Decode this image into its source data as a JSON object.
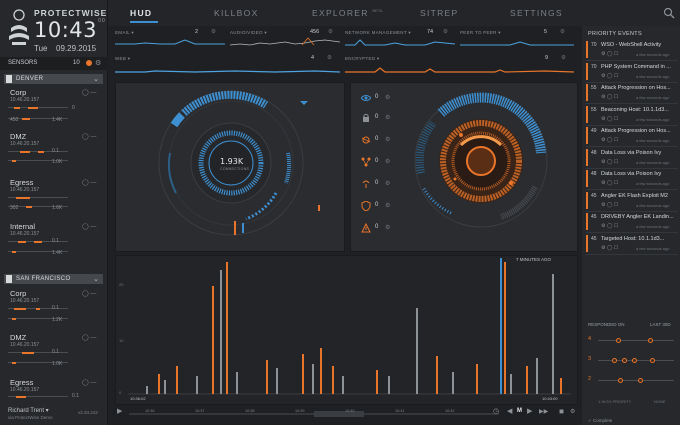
{
  "brand": {
    "name": "PROTECTWISE",
    "clock": "10:43",
    "clock_suffix": "00",
    "day": "Tue",
    "date": "09.29.2015"
  },
  "nav": {
    "tabs": [
      {
        "label": "HUD",
        "active": true
      },
      {
        "label": "KILLBOX",
        "active": false
      },
      {
        "label": "EXPLORER",
        "sup": "BETA",
        "active": false
      },
      {
        "label": "SITREP",
        "active": false
      },
      {
        "label": "SETTINGS",
        "active": false
      }
    ],
    "search_icon": "search-icon"
  },
  "sensors": {
    "label": "SENSORS",
    "count": "10",
    "regions": [
      {
        "name": "DENVER",
        "sensors": [
          {
            "name": "Corp",
            "ip": "10.46.20.157",
            "in": "450",
            "out": "1.4K"
          },
          {
            "name": "DMZ",
            "ip": "10.46.20.157",
            "in": "0.1",
            "out": "1.0K"
          },
          {
            "name": "Egress",
            "ip": "10.46.20.157",
            "in": "302",
            "out": "1.6K"
          },
          {
            "name": "Internal",
            "ip": "10.46.20.157",
            "in": "0.1",
            "out": "1.4K"
          }
        ]
      },
      {
        "name": "SAN FRANCISCO",
        "sensors": [
          {
            "name": "Corp",
            "ip": "10.46.20.157",
            "in": "0.1",
            "out": "1.2K"
          },
          {
            "name": "DMZ",
            "ip": "10.46.20.157",
            "in": "0.1",
            "out": "1.0K"
          },
          {
            "name": "Egress",
            "ip": "10.46.20.157",
            "in": "0.1",
            "out": "1.4K"
          }
        ]
      }
    ]
  },
  "user": {
    "name": "Richard Trent ▾",
    "org": "via ProtectWise Demo",
    "version": "v2.34.242"
  },
  "metrics": [
    {
      "label": "EMAIL ▾",
      "value": "2",
      "color": "#4fa3e0"
    },
    {
      "label": "AUDIO/VIDEO ▾",
      "value": "456",
      "color": "#c8ccd0"
    },
    {
      "label": "NETWORK MANAGEMENT ▾",
      "value": "74",
      "color": "#4fa3e0"
    },
    {
      "label": "PEER TO PEER ▾",
      "value": "5",
      "color": "#4fa3e0"
    },
    {
      "label": "WEB ▾",
      "value": "4",
      "color": "#4fa3e0"
    },
    {
      "label": "ENCRYPTED ▾",
      "value": "9",
      "color": "#e8752a"
    }
  ],
  "gauge": {
    "value": "1.93K",
    "sub": "CONNECTIONS"
  },
  "threats": [
    {
      "icon": "eye-icon",
      "value": "0"
    },
    {
      "icon": "lock-icon",
      "value": "0"
    },
    {
      "icon": "bug-icon",
      "value": "0"
    },
    {
      "icon": "network-icon",
      "value": "0"
    },
    {
      "icon": "broadcast-icon",
      "value": "0"
    },
    {
      "icon": "shield-icon",
      "value": "0"
    },
    {
      "icon": "alert-icon",
      "value": "0"
    }
  ],
  "timeline": {
    "range_label": "7 MINUTES AGO",
    "left_time": "10:36:02",
    "right_time": "10:43:00",
    "y_ticks": [
      "20",
      "10",
      "0"
    ],
    "ticks": [
      "10:36",
      "10:37",
      "10:38",
      "10:39",
      "10:40",
      "10:41",
      "10:42",
      "10:43"
    ]
  },
  "transport": {
    "speed": "M",
    "live": "LIVE"
  },
  "priority_events": {
    "title": "PRIORITY EVENTS",
    "items": [
      {
        "num": "70",
        "text": "WSO - WebShell Activity",
        "ago": "a few seconds ago"
      },
      {
        "num": "70",
        "text": "PHP System Command in ...",
        "ago": "a few seconds ago"
      },
      {
        "num": "55",
        "text": "Attack Progression on Hos...",
        "ago": "a few seconds ago"
      },
      {
        "num": "55",
        "text": "Beaconing Host: 10.1.1d3...",
        "ago": "a few seconds ago"
      },
      {
        "num": "49",
        "text": "Attack Progression on Hos...",
        "ago": "a few seconds ago"
      },
      {
        "num": "48",
        "text": "Data Loss via Poison Ivy",
        "ago": "a few seconds ago"
      },
      {
        "num": "48",
        "text": "Data Loss via Poison Ivy",
        "ago": "a few seconds ago"
      },
      {
        "num": "45",
        "text": "Angler EK Flash Exploit M2",
        "ago": "a few seconds ago"
      },
      {
        "num": "45",
        "text": "DRIVEBY Angler EK Landin...",
        "ago": "a few seconds ago"
      },
      {
        "num": "45",
        "text": "Targeted Host: 10.1.1d3...",
        "ago": "a few seconds ago"
      }
    ]
  },
  "response": {
    "head_left": "RESPONDED ON",
    "head_right": "LAST 30D",
    "rows": [
      {
        "num": "4"
      },
      {
        "num": "3"
      },
      {
        "num": "2"
      }
    ],
    "foot_left": "1 HIGH PRIORITY",
    "foot_right": "NONE",
    "complete": "✓ Complete"
  },
  "colors": {
    "accent_blue": "#3e8fd0",
    "accent_orange": "#e8752a",
    "bg": "#1e2023"
  }
}
